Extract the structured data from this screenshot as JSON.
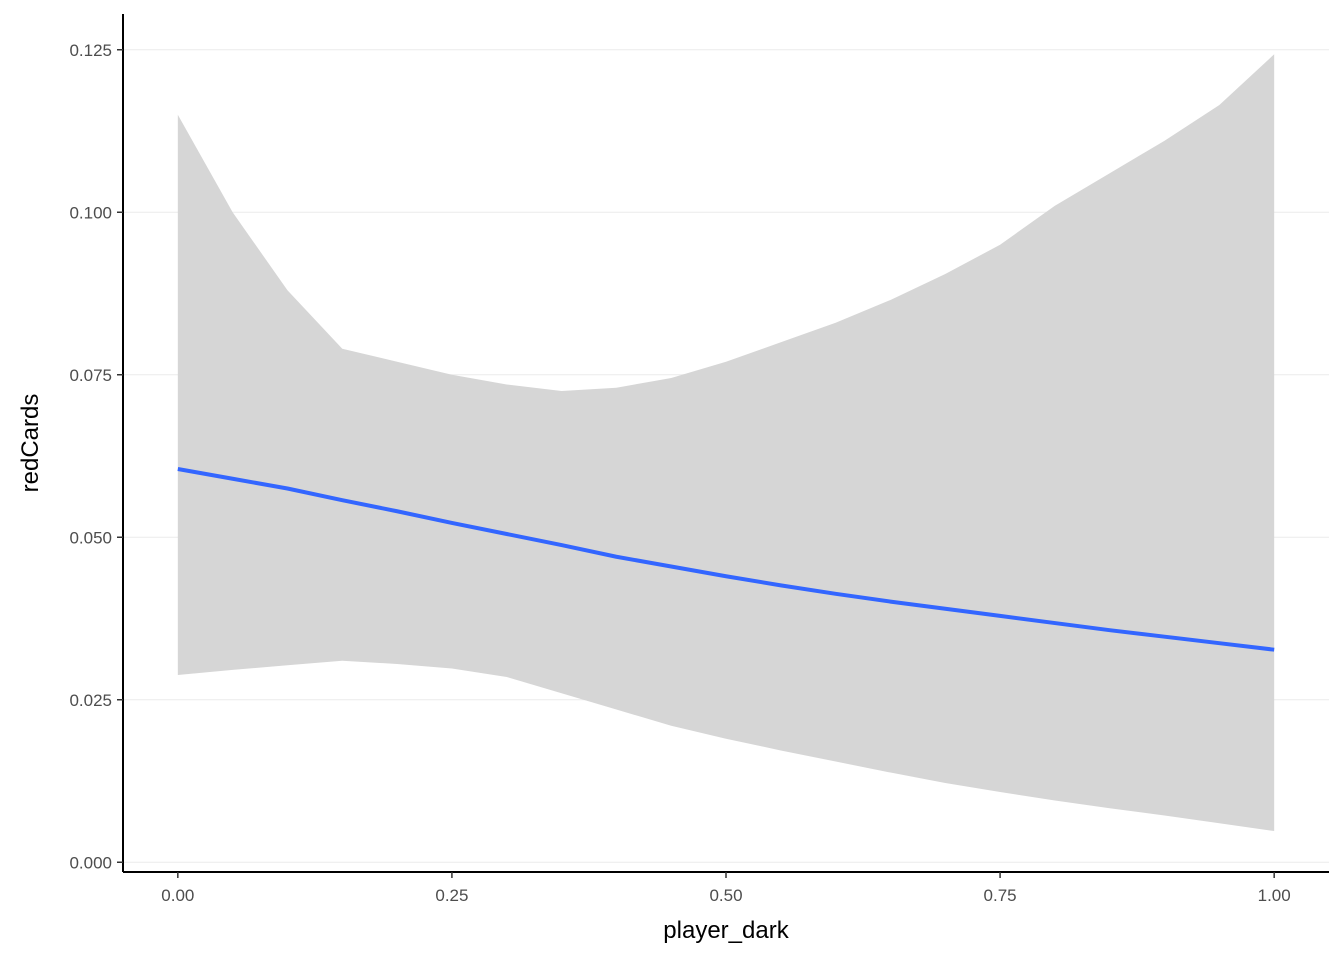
{
  "chart_data": {
    "type": "line",
    "title": "",
    "xlabel": "player_dark",
    "ylabel": "redCards",
    "xlim": [
      -0.05,
      1.05
    ],
    "ylim": [
      -0.0015,
      0.1305
    ],
    "grid": {
      "major_y": true,
      "major_x": false
    },
    "x_ticks": [
      0,
      0.25,
      0.5,
      0.75,
      1
    ],
    "x_tick_labels": [
      "0.00",
      "0.25",
      "0.50",
      "0.75",
      "1.00"
    ],
    "y_ticks": [
      0,
      0.025,
      0.05,
      0.075,
      0.1,
      0.125
    ],
    "y_tick_labels": [
      "0.000",
      "0.025",
      "0.050",
      "0.075",
      "0.100",
      "0.125"
    ],
    "colors": {
      "line": "#3366ff",
      "ribbon": "#d6d6d6",
      "grid": "#ebebeb",
      "axis": "#000000"
    },
    "series": [
      {
        "x": [
          0,
          0.05,
          0.1,
          0.15,
          0.2,
          0.25,
          0.3,
          0.35,
          0.4,
          0.45,
          0.5,
          0.55,
          0.6,
          0.65,
          0.7,
          0.75,
          0.8,
          0.85,
          0.9,
          0.95,
          1
        ],
        "y": [
          0.0605,
          0.059,
          0.0575,
          0.0557,
          0.054,
          0.0522,
          0.0505,
          0.0488,
          0.047,
          0.0455,
          0.044,
          0.0426,
          0.0413,
          0.0401,
          0.039,
          0.0379,
          0.0368,
          0.0357,
          0.0347,
          0.0337,
          0.0327
        ],
        "ymin": [
          0.0288,
          0.0296,
          0.0303,
          0.031,
          0.0305,
          0.0298,
          0.0285,
          0.026,
          0.0235,
          0.021,
          0.019,
          0.0172,
          0.0155,
          0.0138,
          0.0122,
          0.0108,
          0.0095,
          0.0083,
          0.0072,
          0.006,
          0.0048
        ],
        "ymax": [
          0.115,
          0.1,
          0.088,
          0.079,
          0.077,
          0.075,
          0.0735,
          0.0725,
          0.073,
          0.0745,
          0.077,
          0.08,
          0.083,
          0.0865,
          0.0905,
          0.095,
          0.101,
          0.106,
          0.111,
          0.1165,
          0.1243
        ]
      }
    ]
  }
}
